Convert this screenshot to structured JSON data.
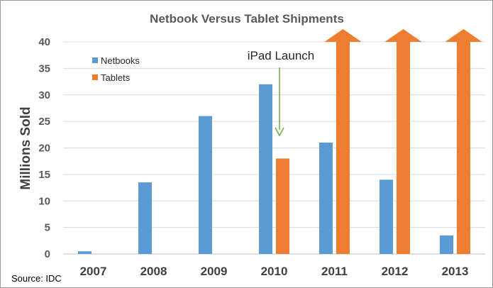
{
  "chart_data": {
    "type": "bar",
    "title": "Netbook Versus Tablet Shipments",
    "xlabel": "",
    "ylabel": "Millions Sold",
    "ylim": [
      0,
      40
    ],
    "yticks": [
      "0",
      "5",
      "10",
      "15",
      "20",
      "25",
      "30",
      "35",
      "40"
    ],
    "categories": [
      "2007",
      "2008",
      "2009",
      "2010",
      "2011",
      "2012",
      "2013"
    ],
    "series": [
      {
        "name": "Netbooks",
        "color": "#5b9bd5",
        "values": [
          0.5,
          13.5,
          26,
          32,
          21,
          14,
          3.5
        ]
      },
      {
        "name": "Tablets",
        "color": "#ed7d31",
        "values": [
          null,
          null,
          null,
          18,
          40,
          40,
          40
        ],
        "exceeds_axis": [
          false,
          false,
          false,
          false,
          true,
          true,
          true
        ]
      }
    ],
    "grid": "horizontal",
    "legend_position": "top-left",
    "annotation": {
      "text": "iPad Launch",
      "target_category": "2010",
      "arrow_color": "#70ad47"
    },
    "source": "Source: IDC"
  }
}
